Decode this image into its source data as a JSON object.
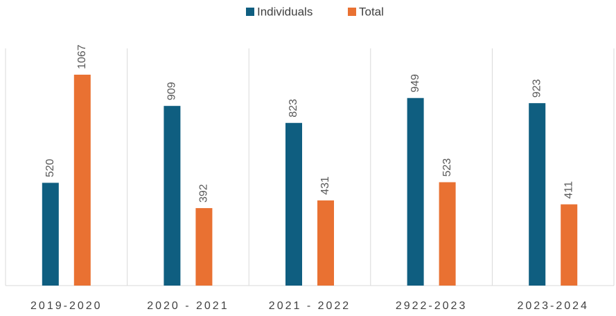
{
  "chart_data": {
    "type": "bar",
    "categories": [
      "2019-2020",
      "2020 - 2021",
      "2021 - 2022",
      "2922-2023",
      "2023-2024"
    ],
    "series": [
      {
        "name": "Individuals",
        "color": "#0f5e80",
        "values": [
          520,
          909,
          823,
          949,
          923
        ]
      },
      {
        "name": "Total",
        "color": "#e97132",
        "values": [
          1067,
          392,
          431,
          523,
          411
        ]
      }
    ],
    "ylim": [
      0,
      1200
    ],
    "legend": "top"
  }
}
